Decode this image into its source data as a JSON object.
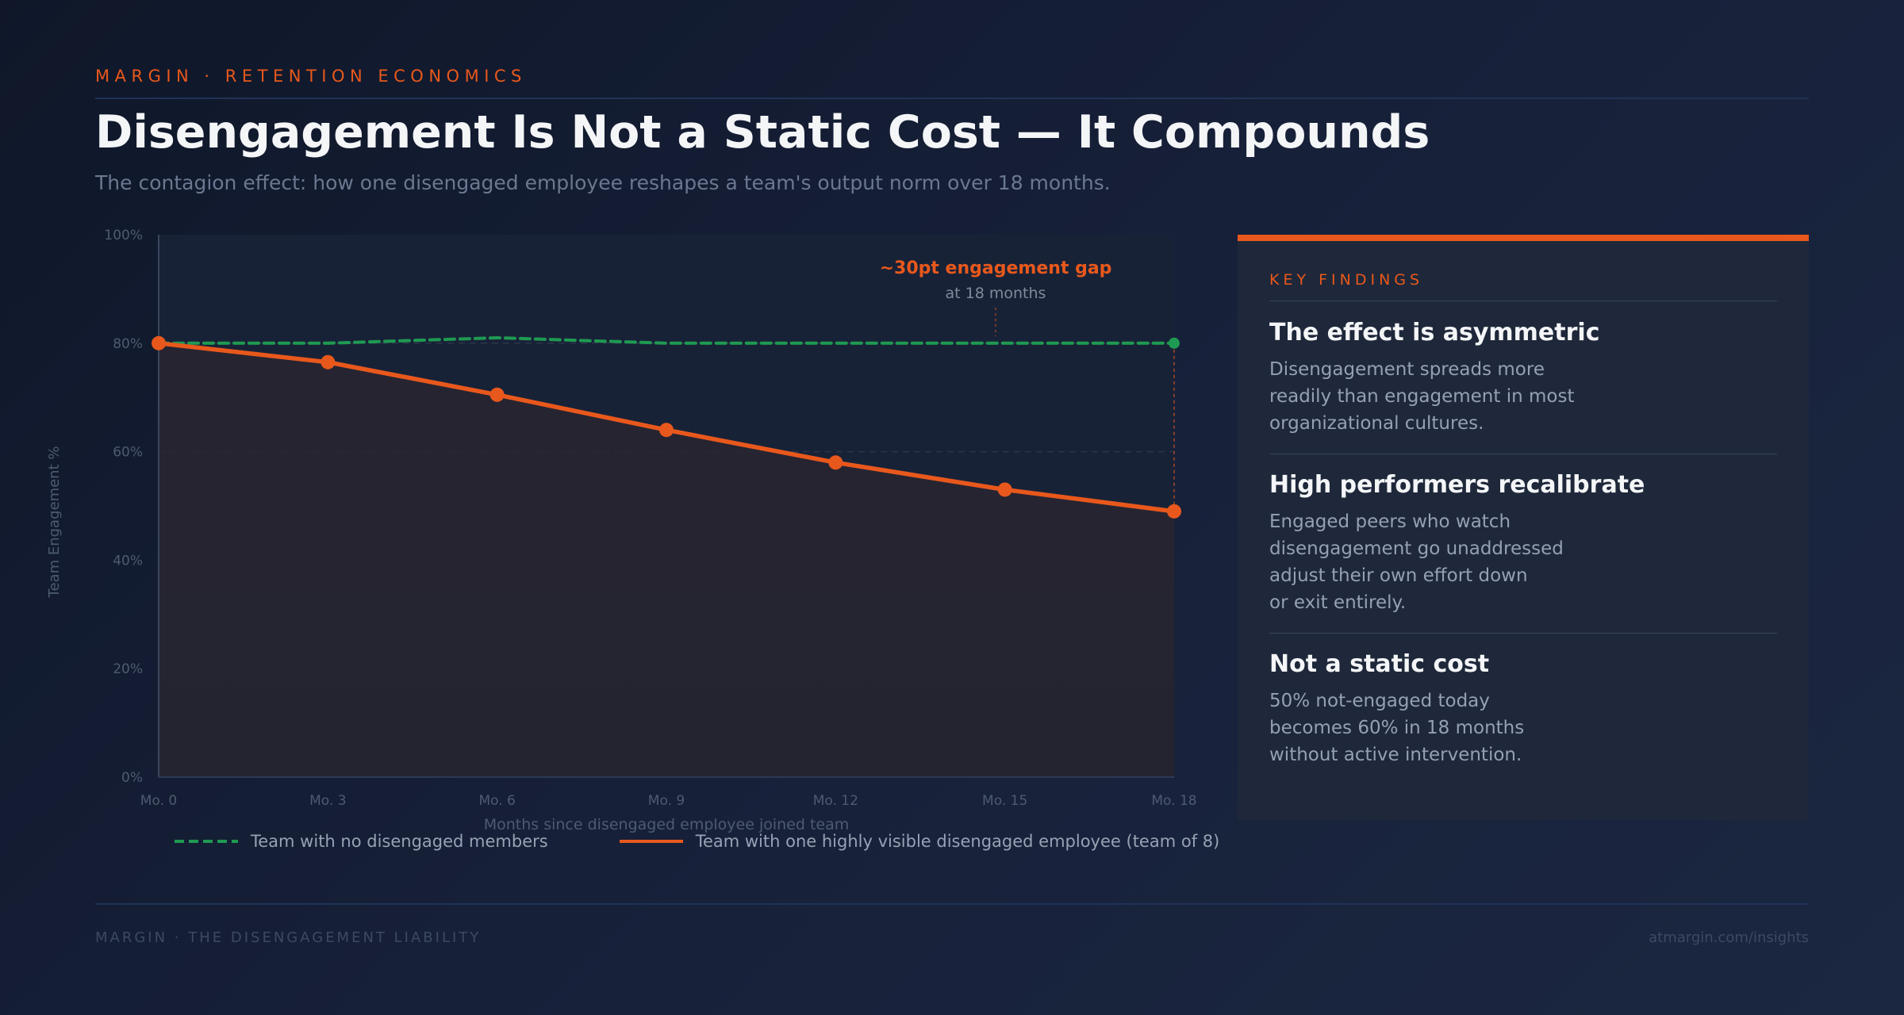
{
  "header": {
    "eyebrow": "MARGIN · RETENTION ECONOMICS",
    "title": "Disengagement Is Not a Static Cost — It Compounds",
    "subtitle": "The contagion effect: how one disengaged employee reshapes a team's output norm over 18 months."
  },
  "chart_data": {
    "type": "line",
    "title": "Disengagement Is Not a Static Cost — It Compounds",
    "xlabel": "Months since disengaged employee joined team",
    "ylabel": "Team Engagement %",
    "categories": [
      "Mo. 0",
      "Mo. 3",
      "Mo. 6",
      "Mo. 9",
      "Mo. 12",
      "Mo. 15",
      "Mo. 18"
    ],
    "x": [
      0,
      3,
      6,
      9,
      12,
      15,
      18
    ],
    "ylim": [
      0,
      100
    ],
    "yticks": [
      0,
      20,
      40,
      60,
      80,
      100
    ],
    "ytick_labels": [
      "0%",
      "20%",
      "40%",
      "60%",
      "80%",
      "100%"
    ],
    "grid": true,
    "series": [
      {
        "name": "Team with no disengaged members",
        "style": "dashed",
        "color": "#1f9a52",
        "values": [
          80,
          80,
          81,
          80,
          80,
          80,
          80
        ]
      },
      {
        "name": "Team with one highly visible disengaged employee (team of 8)",
        "style": "solid",
        "color": "#e8581c",
        "values": [
          80,
          76.5,
          70.5,
          64,
          58,
          53,
          49
        ]
      }
    ],
    "annotation": {
      "title": "~30pt engagement gap",
      "subtitle": "at 18 months",
      "at_x": 18
    }
  },
  "panel": {
    "heading": "KEY FINDINGS",
    "findings": [
      {
        "title": "The effect is asymmetric",
        "lines": [
          "Disengagement spreads more",
          "readily than engagement in most",
          "organizational cultures."
        ]
      },
      {
        "title": "High performers recalibrate",
        "lines": [
          "Engaged peers who watch",
          "disengagement go unaddressed",
          "adjust their own effort down",
          "or exit entirely."
        ]
      },
      {
        "title": "Not a static cost",
        "lines": [
          "50% not-engaged today",
          "becomes 60% in 18 months",
          "without active intervention."
        ]
      }
    ]
  },
  "footer": {
    "left": "MARGIN · THE DISENGAGEMENT LIABILITY",
    "right": "atmargin.com/insights"
  },
  "colors": {
    "accent": "#e8581c",
    "baseline": "#1f9a52"
  }
}
